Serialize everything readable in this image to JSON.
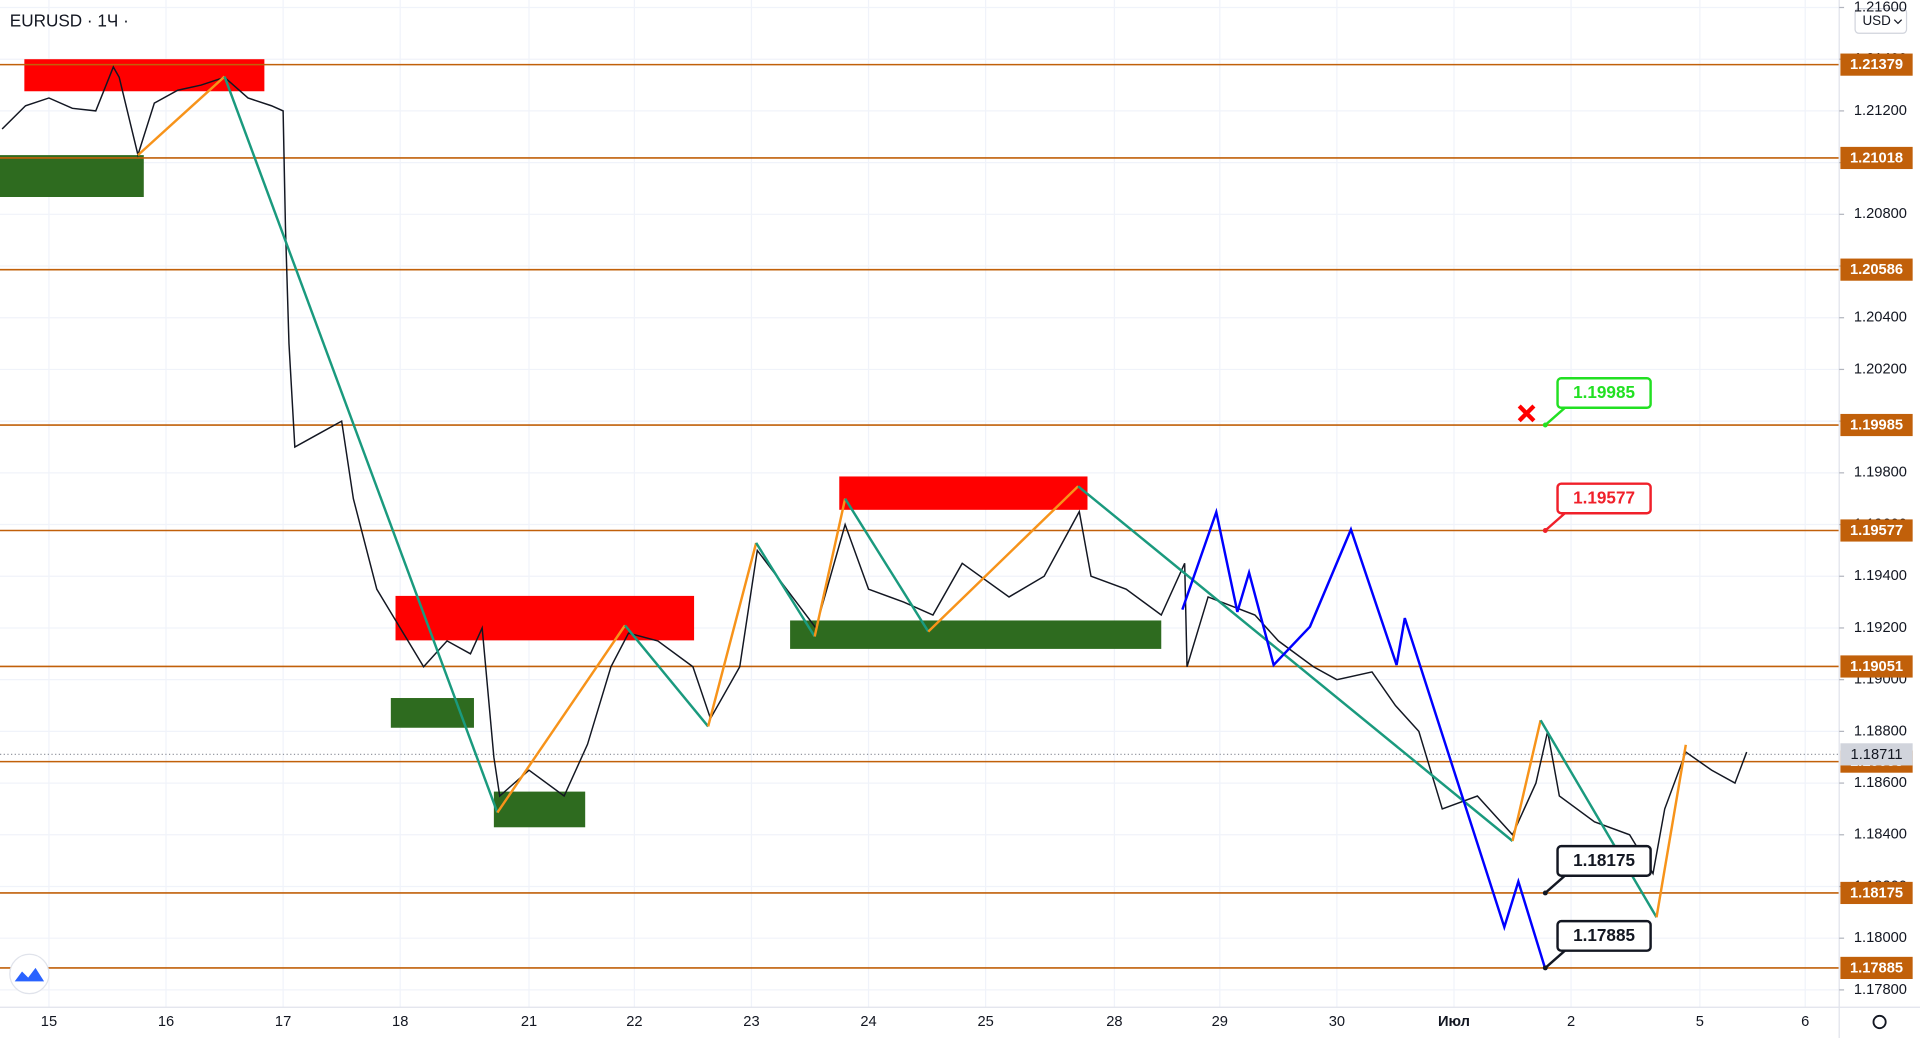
{
  "chart_data": {
    "type": "candlestick",
    "title": "EURUSD · 1Ч ·",
    "currency": "USD",
    "xlim": [
      -0.418,
      15.29
    ],
    "ylim": [
      1.17733,
      1.21629
    ],
    "xticks": [
      {
        "value": 0,
        "label": "15"
      },
      {
        "value": 1,
        "label": "16"
      },
      {
        "value": 2,
        "label": "17"
      },
      {
        "value": 3,
        "label": "18"
      },
      {
        "value": 4.1,
        "label": "21"
      },
      {
        "value": 5,
        "label": "22"
      },
      {
        "value": 6,
        "label": "23"
      },
      {
        "value": 7,
        "label": "24"
      },
      {
        "value": 8,
        "label": "25"
      },
      {
        "value": 9.1,
        "label": "28"
      },
      {
        "value": 10,
        "label": "29"
      },
      {
        "value": 11,
        "label": "30"
      },
      {
        "value": 12,
        "label": "Июл"
      },
      {
        "value": 13,
        "label": "2"
      },
      {
        "value": 14.1,
        "label": "5"
      },
      {
        "value": 15,
        "label": "6"
      }
    ],
    "yticks": [
      {
        "value": 1.216,
        "label": "1.21600"
      },
      {
        "value": 1.214,
        "label": "1.21400"
      },
      {
        "value": 1.212,
        "label": "1.21200"
      },
      {
        "value": 1.21,
        "label": "1.21000"
      },
      {
        "value": 1.208,
        "label": "1.20800"
      },
      {
        "value": 1.206,
        "label": "1.20600"
      },
      {
        "value": 1.204,
        "label": "1.20400"
      },
      {
        "value": 1.202,
        "label": "1.20200"
      },
      {
        "value": 1.2,
        "label": "1.20000"
      },
      {
        "value": 1.198,
        "label": "1.19800"
      },
      {
        "value": 1.196,
        "label": "1.19600"
      },
      {
        "value": 1.194,
        "label": "1.19400"
      },
      {
        "value": 1.192,
        "label": "1.19200"
      },
      {
        "value": 1.19,
        "label": "1.19000"
      },
      {
        "value": 1.188,
        "label": "1.18800"
      },
      {
        "value": 1.186,
        "label": "1.18600"
      },
      {
        "value": 1.184,
        "label": "1.18400"
      },
      {
        "value": 1.182,
        "label": "1.18200"
      },
      {
        "value": 1.18,
        "label": "1.18000"
      },
      {
        "value": 1.178,
        "label": "1.17800"
      }
    ],
    "price": {
      "color": "#131722",
      "x": [
        -0.4,
        -0.2,
        0,
        0.2,
        0.4,
        0.55,
        0.6,
        0.76,
        0.9,
        1.1,
        1.3,
        1.5,
        1.7,
        1.9,
        2.0,
        2.02,
        2.05,
        2.1,
        2.3,
        2.5,
        2.6,
        2.8,
        3.0,
        3.2,
        3.4,
        3.6,
        3.7,
        3.8,
        3.85,
        4.1,
        4.4,
        4.6,
        4.8,
        4.95,
        5.2,
        5.5,
        5.65,
        5.9,
        6.05,
        6.3,
        6.55,
        6.8,
        7.0,
        7.3,
        7.55,
        7.8,
        8.2,
        8.5,
        8.8,
        8.9,
        9.2,
        9.5,
        9.7,
        9.72,
        9.9,
        10.3,
        10.5,
        10.8,
        11.0,
        11.3,
        11.5,
        11.7,
        11.9,
        12.2,
        12.5,
        12.7,
        12.8,
        12.9,
        13.2,
        13.5,
        13.7,
        13.8,
        13.98,
        14.2,
        14.4,
        14.5
      ],
      "y": [
        1.2113,
        1.2122,
        1.2125,
        1.2121,
        1.212,
        1.2137,
        1.2133,
        1.2103,
        1.2123,
        1.2128,
        1.213,
        1.2133,
        1.2125,
        1.2122,
        1.212,
        1.2075,
        1.203,
        1.199,
        1.1995,
        1.2,
        1.197,
        1.1935,
        1.192,
        1.1905,
        1.1915,
        1.191,
        1.192,
        1.187,
        1.1855,
        1.1865,
        1.1855,
        1.1875,
        1.1905,
        1.1918,
        1.1915,
        1.1905,
        1.1885,
        1.1905,
        1.195,
        1.1935,
        1.192,
        1.196,
        1.1935,
        1.193,
        1.1925,
        1.1945,
        1.1932,
        1.194,
        1.1965,
        1.194,
        1.1935,
        1.1925,
        1.1945,
        1.1905,
        1.1932,
        1.1925,
        1.1915,
        1.1905,
        1.19,
        1.1903,
        1.189,
        1.188,
        1.185,
        1.1855,
        1.184,
        1.186,
        1.188,
        1.1855,
        1.1845,
        1.184,
        1.1825,
        1.185,
        1.1872,
        1.1865,
        1.186,
        1.1872
      ]
    },
    "levels": {
      "color": "#c1600a",
      "values": [
        1.21379,
        1.21018,
        1.20586,
        1.19985,
        1.19577,
        1.19051,
        1.18683,
        1.18175,
        1.17885
      ]
    },
    "last_price": 1.18711,
    "zones": [
      {
        "x": [
          -0.21,
          1.84
        ],
        "y": [
          1.21276,
          1.214
        ],
        "color": "#ff0000"
      },
      {
        "x": [
          -0.418,
          0.81
        ],
        "y": [
          1.20867,
          1.21029
        ],
        "color": "#2e6b1f"
      },
      {
        "x": [
          2.96,
          5.51
        ],
        "y": [
          1.19152,
          1.19324
        ],
        "color": "#ff0000"
      },
      {
        "x": [
          2.92,
          3.63
        ],
        "y": [
          1.18814,
          1.18929
        ],
        "color": "#2e6b1f"
      },
      {
        "x": [
          3.8,
          4.58
        ],
        "y": [
          1.18429,
          1.18567
        ],
        "color": "#2e6b1f"
      },
      {
        "x": [
          6.75,
          8.87
        ],
        "y": [
          1.19657,
          1.19786
        ],
        "color": "#ff0000"
      },
      {
        "x": [
          6.33,
          9.5
        ],
        "y": [
          1.19119,
          1.19229
        ],
        "color": "#2e6b1f"
      }
    ],
    "zigzag": {
      "up_color": "#f7931a",
      "down_color": "#1a9a7e",
      "x": [
        0.76,
        1.5,
        3.83,
        4.92,
        5.63,
        6.04,
        6.54,
        6.8,
        7.51,
        8.79,
        12.5,
        12.74,
        13.73,
        13.98
      ],
      "y": [
        1.21029,
        1.21333,
        1.18486,
        1.1921,
        1.18819,
        1.19529,
        1.19167,
        1.197,
        1.19186,
        1.19748,
        1.18376,
        1.18843,
        1.18081,
        1.18748
      ]
    },
    "projection": {
      "color": "#0000ff",
      "x": [
        9.68,
        9.97,
        10.15,
        10.25,
        10.46,
        10.77,
        11.12,
        11.51,
        11.58,
        12.43,
        12.55,
        12.78
      ],
      "y": [
        1.19271,
        1.19648,
        1.19262,
        1.19414,
        1.19057,
        1.19205,
        1.19581,
        1.19057,
        1.19238,
        1.18043,
        1.18219,
        1.17881
      ]
    },
    "callouts": [
      {
        "x": 12.78,
        "value": 1.19985,
        "color": "#22e022"
      },
      {
        "x": 12.78,
        "value": 1.19577,
        "color": "#f0202a"
      },
      {
        "x": 12.78,
        "value": 1.18175,
        "color": "#131722"
      },
      {
        "x": 12.78,
        "value": 1.17885,
        "color": "#131722"
      }
    ],
    "stop_marker": {
      "x": 12.62,
      "y": 1.2003,
      "color": "#ff0000"
    }
  }
}
